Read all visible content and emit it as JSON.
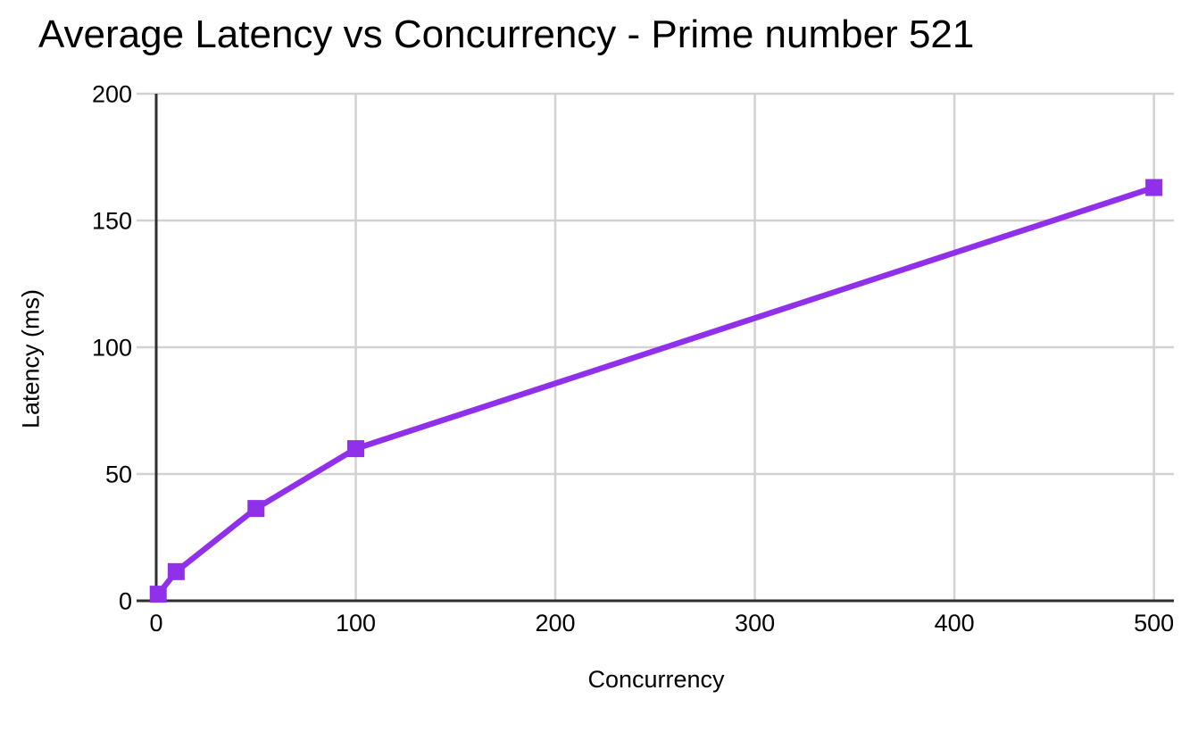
{
  "chart_data": {
    "type": "line",
    "title": "Average Latency vs Concurrency - Prime number 521",
    "xlabel": "Concurrency",
    "ylabel": "Latency (ms)",
    "x": [
      1,
      10,
      50,
      100,
      500
    ],
    "y": [
      2.6,
      11.5,
      36.4,
      60,
      163
    ],
    "x_ticks": [
      0,
      100,
      200,
      300,
      400,
      500
    ],
    "y_ticks": [
      0,
      50,
      100,
      150,
      200
    ],
    "xlim": [
      0,
      510
    ],
    "ylim": [
      0,
      200
    ],
    "grid": true,
    "legend_position": "none",
    "marker": "square",
    "colors": {
      "line": "#9130ea",
      "grid": "#d2d2d2",
      "axis": "#2e2e2e",
      "text": "#000000",
      "background": "#ffffff"
    }
  }
}
